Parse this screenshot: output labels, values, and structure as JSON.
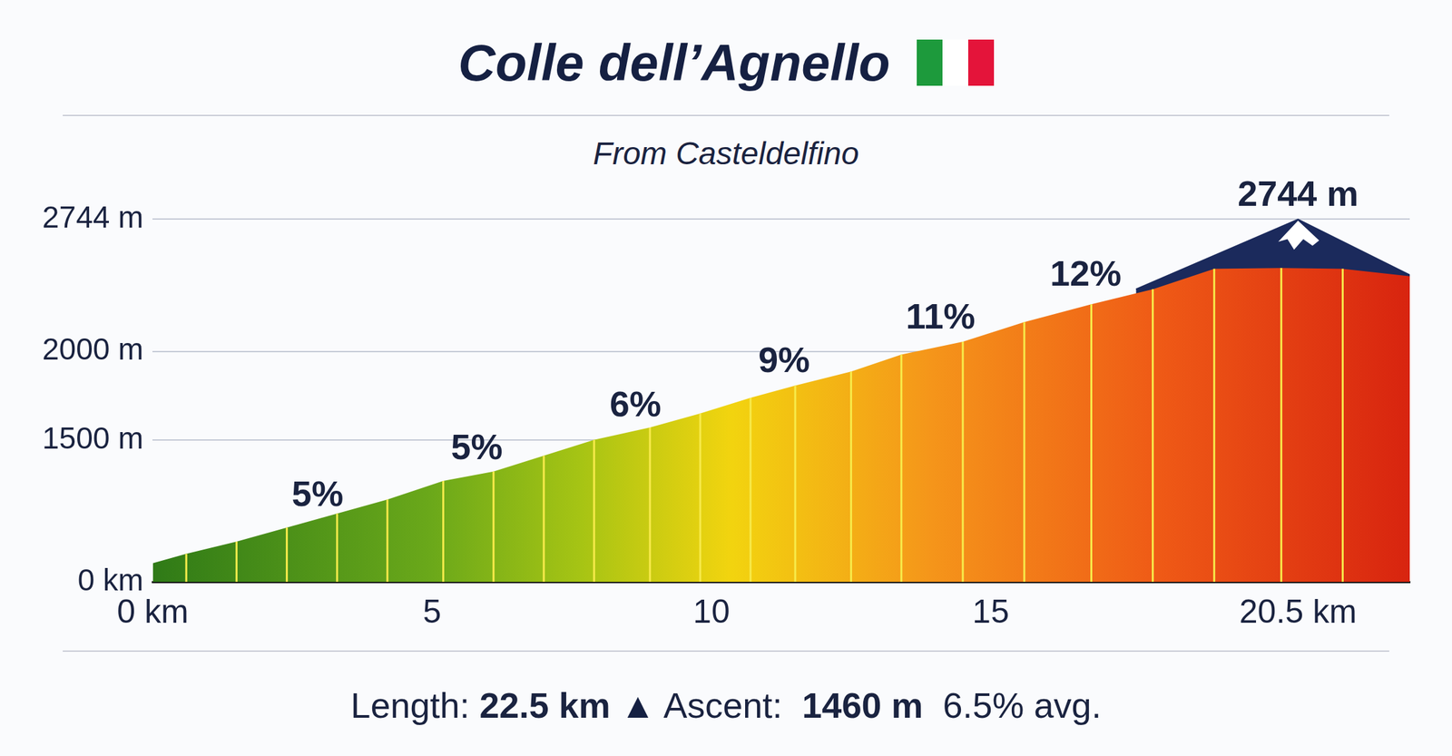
{
  "chart_data": {
    "type": "area",
    "title": "Colle dell’Agnello",
    "subtitle": "From Casteldelfino",
    "footer": [
      "Length:",
      "22.5 km",
      "▲",
      "Ascent:",
      "1460 m",
      "6.5% avg."
    ],
    "series": [
      {
        "x": [
          0,
          0.6,
          1.5,
          2.4,
          3.3,
          4.2,
          5.2,
          6.1,
          7.0,
          7.9,
          8.9,
          9.8,
          10.7,
          11.5,
          12.5,
          13.4,
          14.5,
          15.6,
          16.8,
          17.9,
          19.0,
          20.2,
          21.3,
          22.5
        ],
        "values": [
          805,
          858,
          927,
          1006,
          1085,
          1164,
          1269,
          1322,
          1411,
          1501,
          1570,
          1649,
          1738,
          1807,
          1886,
          1981,
          2054,
          2165,
          2265,
          2350,
          2465,
          2470,
          2465,
          2423
        ],
        "color": "#d8240f"
      },
      {
        "x": [
          17.6,
          20.5,
          22.5
        ],
        "values": [
          2350,
          2744,
          2430
        ],
        "color": "#1b2a5c"
      }
    ],
    "xlim": [
      0,
      22.5
    ],
    "xticks": [
      {
        "value": 0,
        "label": "0 km"
      },
      5,
      10,
      15,
      {
        "value": 20.5,
        "label": "20.5 km"
      }
    ],
    "ylim": [
      700,
      2850
    ],
    "yticks": [
      {
        "value": 700,
        "label": "0 km"
      },
      {
        "value": 1500,
        "label": "1500 m"
      },
      {
        "value": 2000,
        "label": "2000 m"
      },
      {
        "value": 2744,
        "label": "2744 m"
      }
    ],
    "grid": true,
    "annotations": [
      {
        "text": "5%",
        "x": 2.95,
        "y": 1053
      },
      {
        "text": "5%",
        "x": 5.8,
        "y": 1317
      },
      {
        "text": "6%",
        "x": 8.64,
        "y": 1559
      },
      {
        "text": "9%",
        "x": 11.3,
        "y": 1807
      },
      {
        "text": "11%",
        "x": 14.1,
        "y": 2054
      },
      {
        "text": "12%",
        "x": 16.7,
        "y": 2297
      },
      {
        "text": "2744 m",
        "x": 20.5,
        "y": 2744
      }
    ]
  }
}
